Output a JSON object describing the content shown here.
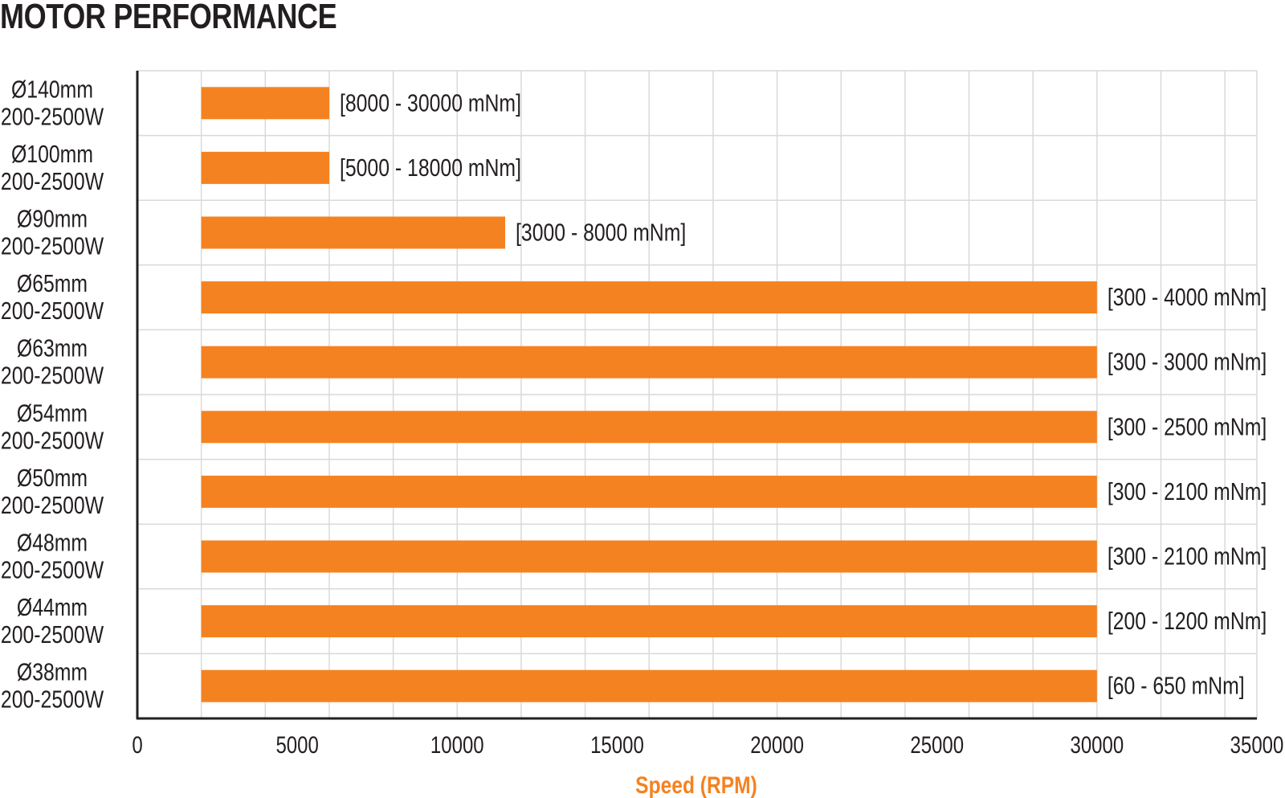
{
  "chart_data": {
    "type": "bar",
    "orientation": "horizontal",
    "title": "MOTOR PERFORMANCE",
    "xlabel": "Speed (RPM)",
    "ylabel": "",
    "xlim": [
      0,
      35000
    ],
    "x_ticks": [
      "0",
      "5000",
      "10000",
      "15000",
      "20000",
      "25000",
      "30000",
      "35000"
    ],
    "grid": true,
    "categories": [
      {
        "line1": "Ø140mm",
        "line2": "200-2500W"
      },
      {
        "line1": "Ø100mm",
        "line2": "200-2500W"
      },
      {
        "line1": "Ø90mm",
        "line2": "200-2500W"
      },
      {
        "line1": "Ø65mm",
        "line2": "200-2500W"
      },
      {
        "line1": "Ø63mm",
        "line2": "200-2500W"
      },
      {
        "line1": "Ø54mm",
        "line2": "200-2500W"
      },
      {
        "line1": "Ø50mm",
        "line2": "200-2500W"
      },
      {
        "line1": "Ø48mm",
        "line2": "200-2500W"
      },
      {
        "line1": "Ø44mm",
        "line2": "200-2500W"
      },
      {
        "line1": "Ø38mm",
        "line2": "200-2500W"
      }
    ],
    "ranges": [
      {
        "start": 2000,
        "end": 6000,
        "label": "[8000 - 30000 mNm]"
      },
      {
        "start": 2000,
        "end": 6000,
        "label": "[5000 - 18000 mNm]"
      },
      {
        "start": 2000,
        "end": 11500,
        "label": "[3000 - 8000 mNm]"
      },
      {
        "start": 2000,
        "end": 30000,
        "label": "[300 - 4000 mNm]"
      },
      {
        "start": 2000,
        "end": 30000,
        "label": "[300 - 3000 mNm]"
      },
      {
        "start": 2000,
        "end": 30000,
        "label": "[300 - 2500 mNm]"
      },
      {
        "start": 2000,
        "end": 30000,
        "label": "[300 - 2100 mNm]"
      },
      {
        "start": 2000,
        "end": 30000,
        "label": "[300 - 2100 mNm]"
      },
      {
        "start": 2000,
        "end": 30000,
        "label": "[200 - 1200 mNm]"
      },
      {
        "start": 2000,
        "end": 30000,
        "label": "[60 - 650 mNm]"
      }
    ],
    "colors": {
      "bar": "#f58220",
      "grid": "#d9d9d9",
      "axis": "#231f20",
      "xlabel": "#f58220",
      "text": "#231f20"
    }
  }
}
